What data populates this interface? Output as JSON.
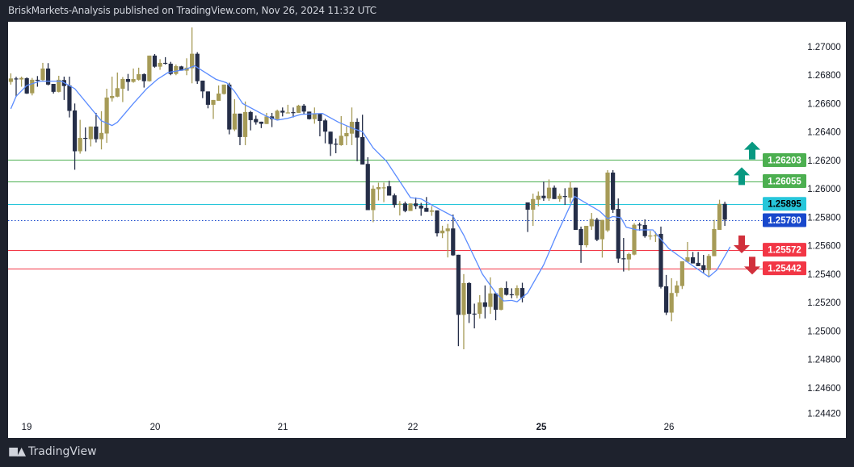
{
  "header": {
    "title": "BriskMarkets-Analysis published on TradingView.com, Nov 26, 2024 11:32 UTC"
  },
  "footer": {
    "logo_text": "TradingView"
  },
  "chart_data": {
    "type": "candlestick",
    "x_tick_labels": [
      "19",
      "20",
      "21",
      "22",
      "25",
      "26"
    ],
    "y_tick_labels": [
      "1.27000",
      "1.26800",
      "1.26600",
      "1.26400",
      "1.26200",
      "1.26000",
      "1.25800",
      "1.25600",
      "1.25400",
      "1.25200",
      "1.25000",
      "1.24800",
      "1.24600",
      "1.24420"
    ],
    "ylim": [
      1.2442,
      1.2717
    ],
    "grid": false,
    "colors": {
      "up": "#a69b57",
      "down": "#252e48",
      "ma": "#5b8cff"
    },
    "candles_ohlc": [
      [
        1.26753,
        1.26813,
        1.26734,
        1.26777
      ],
      [
        1.26777,
        1.26789,
        1.26649,
        1.26775
      ],
      [
        1.2677,
        1.2679,
        1.26719,
        1.26781
      ],
      [
        1.26779,
        1.26785,
        1.26668,
        1.26671
      ],
      [
        1.26673,
        1.26781,
        1.26658,
        1.26768
      ],
      [
        1.26768,
        1.26794,
        1.26719,
        1.26766
      ],
      [
        1.26766,
        1.26887,
        1.26762,
        1.26847
      ],
      [
        1.26847,
        1.26885,
        1.26728,
        1.26734
      ],
      [
        1.26739,
        1.26739,
        1.26671,
        1.26683
      ],
      [
        1.26683,
        1.26796,
        1.26679,
        1.26768
      ],
      [
        1.26766,
        1.2679,
        1.26626,
        1.26724
      ],
      [
        1.26728,
        1.2679,
        1.26503,
        1.26549
      ],
      [
        1.26552,
        1.26601,
        1.26135,
        1.26265
      ],
      [
        1.26265,
        1.26486,
        1.26248,
        1.26359
      ],
      [
        1.26359,
        1.26433,
        1.26265,
        1.26357
      ],
      [
        1.2635,
        1.26439,
        1.26299,
        1.26439
      ],
      [
        1.26439,
        1.26535,
        1.26327,
        1.2635
      ],
      [
        1.2635,
        1.26547,
        1.26278,
        1.26394
      ],
      [
        1.2639,
        1.26705,
        1.26324,
        1.26643
      ],
      [
        1.26639,
        1.2679,
        1.26615,
        1.26654
      ],
      [
        1.26649,
        1.26819,
        1.26645,
        1.26709
      ],
      [
        1.26705,
        1.26787,
        1.26611,
        1.26773
      ],
      [
        1.26773,
        1.26809,
        1.2669,
        1.26753
      ],
      [
        1.26753,
        1.26847,
        1.26747,
        1.26773
      ],
      [
        1.26768,
        1.26853,
        1.26762,
        1.26807
      ],
      [
        1.26807,
        1.26813,
        1.26713,
        1.26758
      ],
      [
        1.26758,
        1.26938,
        1.26755,
        1.26938
      ],
      [
        1.26938,
        1.26949,
        1.26853,
        1.2686
      ],
      [
        1.2686,
        1.26913,
        1.26838,
        1.26887
      ],
      [
        1.26887,
        1.26927,
        1.26875,
        1.26881
      ],
      [
        1.26881,
        1.26894,
        1.268,
        1.26809
      ],
      [
        1.26809,
        1.26875,
        1.268,
        1.26864
      ],
      [
        1.26862,
        1.26866,
        1.26832,
        1.26832
      ],
      [
        1.26832,
        1.26919,
        1.268,
        1.26853
      ],
      [
        1.26849,
        1.27136,
        1.26743,
        1.26951
      ],
      [
        1.26951,
        1.26962,
        1.26739,
        1.26758
      ],
      [
        1.26762,
        1.26762,
        1.26639,
        1.26686
      ],
      [
        1.26686,
        1.26686,
        1.26567,
        1.26592
      ],
      [
        1.26592,
        1.26626,
        1.26492,
        1.26626
      ],
      [
        1.2662,
        1.26728,
        1.2662,
        1.26671
      ],
      [
        1.26668,
        1.26734,
        1.26664,
        1.26734
      ],
      [
        1.26734,
        1.26747,
        1.26384,
        1.26418
      ],
      [
        1.26418,
        1.26632,
        1.26407,
        1.2653
      ],
      [
        1.2653,
        1.2653,
        1.26308,
        1.26365
      ],
      [
        1.26365,
        1.26615,
        1.26308,
        1.26541
      ],
      [
        1.26541,
        1.26549,
        1.26412,
        1.26484
      ],
      [
        1.26492,
        1.26516,
        1.26452,
        1.26469
      ],
      [
        1.26473,
        1.26473,
        1.26428,
        1.26458
      ],
      [
        1.26457,
        1.26535,
        1.26457,
        1.2651
      ],
      [
        1.2651,
        1.26535,
        1.26435,
        1.26491
      ],
      [
        1.26491,
        1.26558,
        1.26488,
        1.2655
      ],
      [
        1.2655,
        1.26573,
        1.2651,
        1.26537
      ],
      [
        1.26535,
        1.26592,
        1.26535,
        1.26538
      ],
      [
        1.2654,
        1.26573,
        1.26503,
        1.26538
      ],
      [
        1.26535,
        1.26592,
        1.26535,
        1.26586
      ],
      [
        1.26586,
        1.26597,
        1.26525,
        1.26544
      ],
      [
        1.26544,
        1.26544,
        1.26488,
        1.26491
      ],
      [
        1.26491,
        1.26573,
        1.26459,
        1.26529
      ],
      [
        1.26529,
        1.26529,
        1.2637,
        1.26478
      ],
      [
        1.26482,
        1.26493,
        1.26321,
        1.26403
      ],
      [
        1.26403,
        1.26403,
        1.26232,
        1.26316
      ],
      [
        1.26318,
        1.26355,
        1.26251,
        1.26316
      ],
      [
        1.26308,
        1.26512,
        1.26304,
        1.26374
      ],
      [
        1.2637,
        1.2644,
        1.26308,
        1.26393
      ],
      [
        1.26389,
        1.26573,
        1.26308,
        1.26472
      ],
      [
        1.26472,
        1.26497,
        1.26195,
        1.26361
      ],
      [
        1.26365,
        1.26522,
        1.26172,
        1.26172
      ],
      [
        1.26176,
        1.26223,
        1.25851,
        1.25851
      ],
      [
        1.25851,
        1.26025,
        1.25766,
        1.26002
      ],
      [
        1.25998,
        1.26044,
        1.25919,
        1.26013
      ],
      [
        1.26008,
        1.26044,
        1.25907,
        1.26011
      ],
      [
        1.26019,
        1.26057,
        1.25953,
        1.25953
      ],
      [
        1.25955,
        1.25968,
        1.25868,
        1.25887
      ],
      [
        1.25887,
        1.25915,
        1.25813,
        1.25896
      ],
      [
        1.25898,
        1.25911,
        1.25836,
        1.25845
      ],
      [
        1.25845,
        1.25898,
        1.25845,
        1.25898
      ],
      [
        1.25898,
        1.2594,
        1.25858,
        1.25879
      ],
      [
        1.25883,
        1.25902,
        1.25811,
        1.25862
      ],
      [
        1.25866,
        1.25943,
        1.25839,
        1.25839
      ],
      [
        1.25839,
        1.25879,
        1.25811,
        1.25849
      ],
      [
        1.25849,
        1.25849,
        1.25665,
        1.25688
      ],
      [
        1.25688,
        1.25741,
        1.25654,
        1.25707
      ],
      [
        1.25703,
        1.25754,
        1.25518,
        1.25722
      ],
      [
        1.25722,
        1.2582,
        1.25529,
        1.25533
      ],
      [
        1.25537,
        1.25537,
        1.24894,
        1.25114
      ],
      [
        1.25114,
        1.25401,
        1.24872,
        1.25338
      ],
      [
        1.25338,
        1.25344,
        1.25057,
        1.25121
      ],
      [
        1.25123,
        1.25193,
        1.25019,
        1.25121
      ],
      [
        1.25121,
        1.25253,
        1.25089,
        1.25202
      ],
      [
        1.25202,
        1.25321,
        1.25089,
        1.2517
      ],
      [
        1.2517,
        1.25378,
        1.25121,
        1.25265
      ],
      [
        1.25265,
        1.25265,
        1.25076,
        1.2515
      ],
      [
        1.2515,
        1.25306,
        1.25146,
        1.25303
      ],
      [
        1.25303,
        1.2535,
        1.2525,
        1.25255
      ],
      [
        1.25259,
        1.25301,
        1.25231,
        1.25257
      ],
      [
        1.2525,
        1.25322,
        1.25231,
        1.25303
      ],
      [
        1.25303,
        1.2534,
        1.25202,
        1.25235
      ],
      [
        1.25905,
        1.25905,
        1.25697,
        1.25854
      ],
      [
        1.25854,
        1.25967,
        1.2574,
        1.25929
      ],
      [
        1.25924,
        1.25982,
        1.25878,
        1.25952
      ],
      [
        1.25952,
        1.26052,
        1.25916,
        1.25935
      ],
      [
        1.25933,
        1.26067,
        1.25916,
        1.26009
      ],
      [
        1.26009,
        1.26024,
        1.25929,
        1.25929
      ],
      [
        1.25929,
        1.25967,
        1.2591,
        1.25952
      ],
      [
        1.2595,
        1.26005,
        1.25888,
        1.25948
      ],
      [
        1.25939,
        1.26052,
        1.25901,
        1.26009
      ],
      [
        1.26009,
        1.26009,
        1.25712,
        1.25712
      ],
      [
        1.25718,
        1.25735,
        1.2548,
        1.25604
      ],
      [
        1.25604,
        1.2574,
        1.25589,
        1.2574
      ],
      [
        1.25737,
        1.25831,
        1.25712,
        1.25788
      ],
      [
        1.25784,
        1.25797,
        1.25633,
        1.25642
      ],
      [
        1.25646,
        1.25782,
        1.25517,
        1.25782
      ],
      [
        1.25708,
        1.26132,
        1.25697,
        1.26115
      ],
      [
        1.26115,
        1.26132,
        1.25831,
        1.25854
      ],
      [
        1.25859,
        1.25933,
        1.2548,
        1.2551
      ],
      [
        1.25512,
        1.25655,
        1.25419,
        1.2551
      ],
      [
        1.25504,
        1.25551,
        1.25425,
        1.25542
      ],
      [
        1.25538,
        1.25759,
        1.25533,
        1.25748
      ],
      [
        1.2575,
        1.25763,
        1.25706,
        1.25748
      ],
      [
        1.25746,
        1.25786,
        1.25657,
        1.25668
      ],
      [
        1.2567,
        1.25706,
        1.25642,
        1.25672
      ],
      [
        1.25672,
        1.25699,
        1.25627,
        1.25674
      ],
      [
        1.25684,
        1.25735,
        1.253,
        1.25311
      ],
      [
        1.25315,
        1.25395,
        1.25113,
        1.2513
      ],
      [
        1.2513,
        1.25372,
        1.25069,
        1.25268
      ],
      [
        1.25268,
        1.25353,
        1.25243,
        1.25321
      ],
      [
        1.25317,
        1.25491,
        1.25296,
        1.25491
      ],
      [
        1.25487,
        1.25627,
        1.25487,
        1.25519
      ],
      [
        1.25519,
        1.25557,
        1.25476,
        1.25476
      ],
      [
        1.2548,
        1.25557,
        1.25457,
        1.25457
      ],
      [
        1.25463,
        1.25536,
        1.25405,
        1.25429
      ],
      [
        1.25429,
        1.25542,
        1.25381,
        1.25529
      ],
      [
        1.25527,
        1.25782,
        1.25527,
        1.25718
      ],
      [
        1.25712,
        1.25924,
        1.25712,
        1.25895
      ],
      [
        1.25895,
        1.2591,
        1.2574,
        1.25784
      ]
    ],
    "moving_average": [
      [
        0,
        1.26564
      ],
      [
        1,
        1.26652
      ],
      [
        3,
        1.26728
      ],
      [
        5.5,
        1.26758
      ],
      [
        9.5,
        1.26758
      ],
      [
        12,
        1.26705
      ],
      [
        14.5,
        1.26592
      ],
      [
        17,
        1.26479
      ],
      [
        19,
        1.26446
      ],
      [
        20,
        1.26469
      ],
      [
        23,
        1.26601
      ],
      [
        25.5,
        1.26705
      ],
      [
        27.5,
        1.26771
      ],
      [
        29.5,
        1.26819
      ],
      [
        32.5,
        1.26838
      ],
      [
        34.5,
        1.26866
      ],
      [
        36.5,
        1.26819
      ],
      [
        38.5,
        1.26771
      ],
      [
        40.5,
        1.26747
      ],
      [
        42,
        1.26686
      ],
      [
        43.5,
        1.26601
      ],
      [
        48,
        1.26511
      ],
      [
        50,
        1.26484
      ],
      [
        52,
        1.26497
      ],
      [
        54.5,
        1.26525
      ],
      [
        58.5,
        1.26531
      ],
      [
        61.5,
        1.26469
      ],
      [
        64.5,
        1.26421
      ],
      [
        66,
        1.26403
      ],
      [
        68,
        1.26289
      ],
      [
        70.5,
        1.26195
      ],
      [
        73,
        1.26053
      ],
      [
        75,
        1.25939
      ],
      [
        77,
        1.2593
      ],
      [
        79.5,
        1.25877
      ],
      [
        83,
        1.25807
      ],
      [
        85,
        1.25675
      ],
      [
        88.5,
        1.25401
      ],
      [
        91,
        1.25269
      ],
      [
        92.5,
        1.25212
      ],
      [
        94,
        1.25216
      ],
      [
        95,
        1.25206
      ],
      [
        97,
        1.25268
      ],
      [
        100,
        1.25466
      ],
      [
        102.5,
        1.25684
      ],
      [
        105.8,
        1.25948
      ],
      [
        107.5,
        1.2591
      ],
      [
        110.5,
        1.25844
      ],
      [
        112,
        1.25791
      ],
      [
        113,
        1.25806
      ],
      [
        114.5,
        1.25797
      ],
      [
        115.5,
        1.25731
      ],
      [
        117.5,
        1.25712
      ],
      [
        120.5,
        1.25712
      ],
      [
        123.5,
        1.2558
      ],
      [
        127,
        1.25485
      ],
      [
        131,
        1.25381
      ],
      [
        132.5,
        1.25429
      ],
      [
        135,
        1.25593
      ]
    ],
    "levels": [
      {
        "label": "1.26203",
        "value": 1.26203,
        "color": "#4caf50",
        "text_color": "#ffffff",
        "style": "solid"
      },
      {
        "label": "1.26055",
        "value": 1.26055,
        "color": "#4caf50",
        "text_color": "#ffffff",
        "style": "solid"
      },
      {
        "label": "1.25895",
        "value": 1.25895,
        "color": "#26c6da",
        "text_color": "#000000",
        "style": "solid"
      },
      {
        "label": "1.25780",
        "value": 1.2578,
        "color": "#1848cc",
        "text_color": "#ffffff",
        "style": "dotted"
      },
      {
        "label": "1.25572",
        "value": 1.25572,
        "color": "#f23645",
        "text_color": "#ffffff",
        "style": "solid"
      },
      {
        "label": "1.25442",
        "value": 1.25442,
        "color": "#f23645",
        "text_color": "#ffffff",
        "style": "solid"
      }
    ],
    "annotations": [
      {
        "icon": "arrow-up-icon",
        "color": "#089981"
      },
      {
        "icon": "arrow-up-icon",
        "color": "#089981"
      },
      {
        "icon": "arrow-down-icon",
        "color": "#d1303c"
      },
      {
        "icon": "arrow-down-icon",
        "color": "#d1303c"
      }
    ]
  }
}
